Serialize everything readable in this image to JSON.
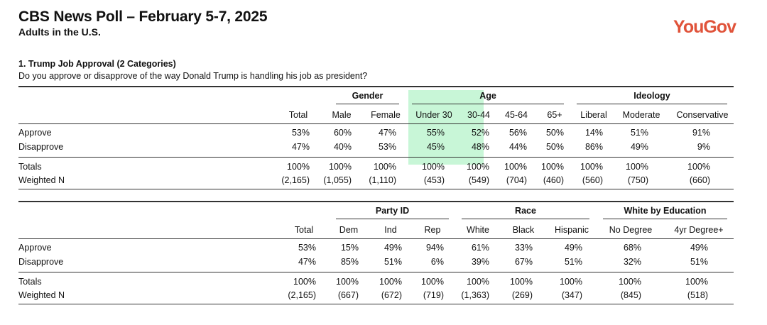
{
  "header": {
    "title": "CBS News Poll – February 5-7, 2025",
    "subtitle": "Adults in the U.S.",
    "logo": "YouGov"
  },
  "question": {
    "number_title": "1. Trump Job Approval (2 Categories)",
    "text": "Do you approve or disapprove of the way Donald Trump is handling his job as president?"
  },
  "colors": {
    "highlight": "#b6f3c9",
    "logo": "#e0533a"
  },
  "table1": {
    "groups": [
      "Gender",
      "Age",
      "Ideology"
    ],
    "columns": [
      "Total",
      "Male",
      "Female",
      "Under 30",
      "30-44",
      "45-64",
      "65+",
      "Liberal",
      "Moderate",
      "Conservative"
    ],
    "rows": [
      {
        "label": "Approve",
        "values": [
          "53%",
          "60%",
          "47%",
          "55%",
          "52%",
          "56%",
          "50%",
          "14%",
          "51%",
          "91%"
        ]
      },
      {
        "label": "Disapprove",
        "values": [
          "47%",
          "40%",
          "53%",
          "45%",
          "48%",
          "44%",
          "50%",
          "86%",
          "49%",
          "9%"
        ]
      },
      {
        "label": "Totals",
        "values": [
          "100%",
          "100%",
          "100%",
          "100%",
          "100%",
          "100%",
          "100%",
          "100%",
          "100%",
          "100%"
        ]
      },
      {
        "label": "Weighted N",
        "values": [
          "(2,165)",
          "(1,055)",
          "(1,110)",
          "(453)",
          "(549)",
          "(704)",
          "(460)",
          "(560)",
          "(750)",
          "(660)"
        ]
      }
    ]
  },
  "table2": {
    "groups": [
      "Party ID",
      "Race",
      "White by Education"
    ],
    "columns": [
      "Total",
      "Dem",
      "Ind",
      "Rep",
      "White",
      "Black",
      "Hispanic",
      "No Degree",
      "4yr Degree+"
    ],
    "rows": [
      {
        "label": "Approve",
        "values": [
          "53%",
          "15%",
          "49%",
          "94%",
          "61%",
          "33%",
          "49%",
          "68%",
          "49%"
        ]
      },
      {
        "label": "Disapprove",
        "values": [
          "47%",
          "85%",
          "51%",
          "6%",
          "39%",
          "67%",
          "51%",
          "32%",
          "51%"
        ]
      },
      {
        "label": "Totals",
        "values": [
          "100%",
          "100%",
          "100%",
          "100%",
          "100%",
          "100%",
          "100%",
          "100%",
          "100%"
        ]
      },
      {
        "label": "Weighted N",
        "values": [
          "(2,165)",
          "(667)",
          "(672)",
          "(719)",
          "(1,363)",
          "(269)",
          "(347)",
          "(845)",
          "(518)"
        ]
      }
    ]
  }
}
